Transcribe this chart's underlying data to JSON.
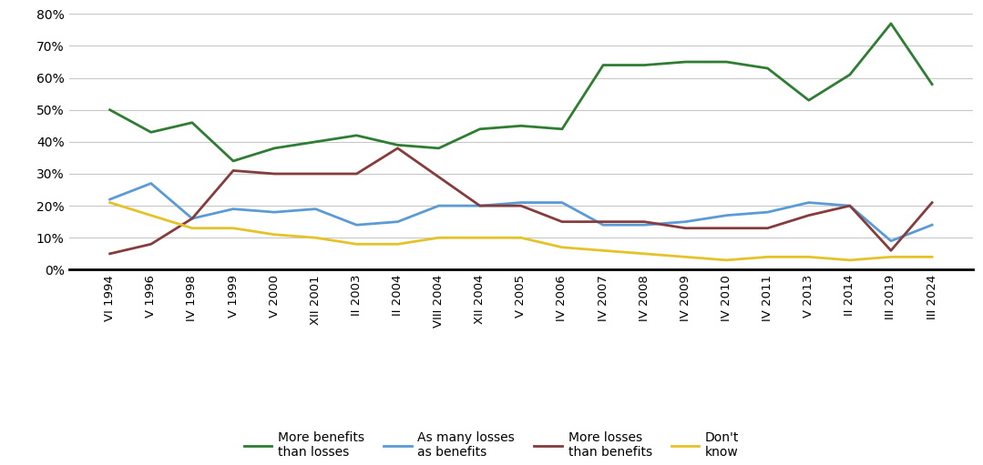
{
  "x_labels": [
    "VI 1994",
    "V 1996",
    "IV 1998",
    "V 1999",
    "V 2000",
    "XII 2001",
    "II 2003",
    "II 2004",
    "VIII 2004",
    "XII 2004",
    "V 2005",
    "IV 2006",
    "IV 2007",
    "IV 2008",
    "IV 2009",
    "IV 2010",
    "IV 2011",
    "V 2013",
    "II 2014",
    "III 2019",
    "III 2024"
  ],
  "more_benefits": [
    50,
    43,
    46,
    34,
    38,
    40,
    42,
    39,
    38,
    44,
    45,
    44,
    64,
    64,
    65,
    65,
    63,
    53,
    61,
    77,
    58
  ],
  "as_many": [
    22,
    27,
    16,
    19,
    18,
    19,
    14,
    15,
    20,
    20,
    21,
    21,
    14,
    14,
    15,
    17,
    18,
    21,
    20,
    9,
    14
  ],
  "more_losses": [
    5,
    8,
    16,
    31,
    30,
    30,
    30,
    38,
    29,
    20,
    20,
    15,
    15,
    15,
    13,
    13,
    13,
    17,
    20,
    6,
    21
  ],
  "dont_know": [
    21,
    17,
    13,
    13,
    11,
    10,
    8,
    8,
    10,
    10,
    10,
    7,
    6,
    5,
    4,
    3,
    4,
    4,
    3,
    4,
    4
  ],
  "colors": {
    "more_benefits": "#2e7d32",
    "as_many": "#5b9bd5",
    "more_losses": "#843c3c",
    "dont_know": "#e6c229"
  },
  "legend_labels": {
    "more_benefits": "More benefits\nthan losses",
    "as_many": "As many losses\nas benefits",
    "more_losses": "More losses\nthan benefits",
    "dont_know": "Don't\nknow"
  },
  "ylim": [
    0,
    80
  ],
  "yticks": [
    0,
    10,
    20,
    30,
    40,
    50,
    60,
    70,
    80
  ],
  "ytick_labels": [
    "0%",
    "10%",
    "20%",
    "30%",
    "40%",
    "50%",
    "60%",
    "70%",
    "80%"
  ],
  "background_color": "#ffffff",
  "line_width": 2.0
}
